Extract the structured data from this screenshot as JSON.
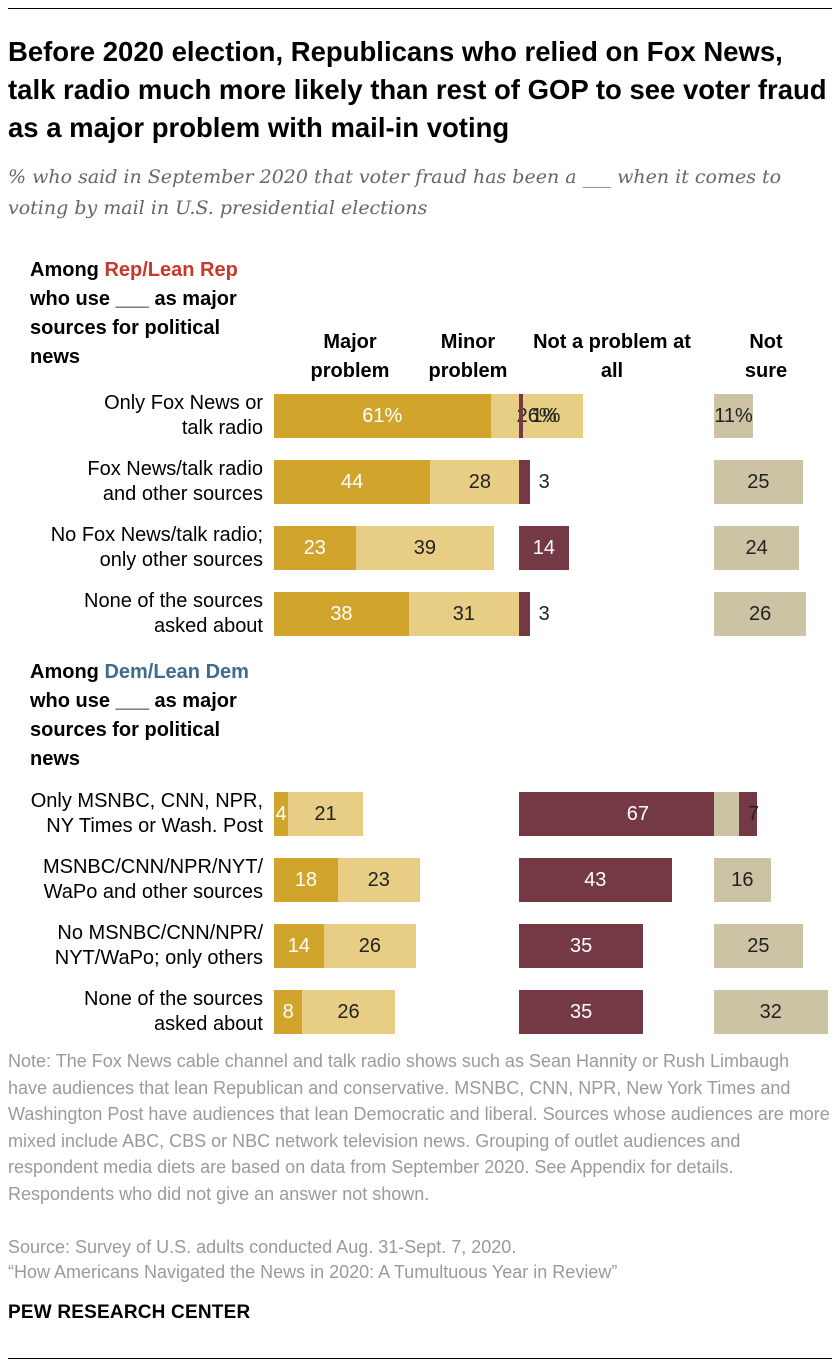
{
  "title": "Before 2020 election, Republicans who relied on Fox News, talk radio much more likely than rest of GOP to see voter fraud as a major problem with mail-in voting",
  "subtitle": "% who said in September 2020 that voter fraud has been a ___ when it comes to voting by mail in U.S. presidential elections",
  "columns": {
    "major": "Major problem",
    "minor": "Minor problem",
    "not_problem": "Not a problem at all",
    "not_sure": "Not sure"
  },
  "colors": {
    "major": "#d1a52c",
    "minor": "#e8cd85",
    "not_problem": "#743945",
    "not_sure": "#cbc3a3",
    "rep": "#c9382a",
    "dem": "#3d6d8c"
  },
  "groups": [
    {
      "prefix": "Among ",
      "highlight": "Rep/Lean Rep",
      "suffix": " who use ___ as major sources for political news"
    },
    {
      "prefix": "Among ",
      "highlight": "Dem/Lean Dem",
      "suffix": " who use ___ as major sources for political news"
    }
  ],
  "chart_data": {
    "type": "bar",
    "orientation": "horizontal",
    "unit": "%",
    "categories": [
      "Only Fox News or talk radio",
      "Fox News/talk radio and other sources",
      "No Fox News/talk radio; only other sources",
      "None of the sources asked about",
      "Only MSNBC, CNN, NPR, NY Times or Wash. Post",
      "MSNBC/CNN/NPR/NYT/ WaPo and other sources",
      "No MSNBC/CNN/NPR/ NYT/WaPo; only others",
      "None of the sources asked about"
    ],
    "category_lines": [
      [
        "Only Fox News or",
        "talk radio"
      ],
      [
        "Fox News/talk radio",
        "and other sources"
      ],
      [
        "No Fox News/talk radio;",
        "only other sources"
      ],
      [
        "None of the sources",
        "asked about"
      ],
      [
        "Only MSNBC, CNN, NPR,",
        "NY Times or Wash. Post"
      ],
      [
        "MSNBC/CNN/NPR/NYT/",
        "WaPo and other sources"
      ],
      [
        "No MSNBC/CNN/NPR/",
        "NYT/WaPo; only others"
      ],
      [
        "None of the sources",
        "asked about"
      ]
    ],
    "group_index": [
      0,
      0,
      0,
      0,
      1,
      1,
      1,
      1
    ],
    "series": [
      {
        "name": "Major problem",
        "values": [
          61,
          44,
          23,
          38,
          4,
          18,
          14,
          8
        ],
        "labels": [
          "61%",
          "44",
          "23",
          "38",
          "4",
          "18",
          "14",
          "8"
        ]
      },
      {
        "name": "Minor problem",
        "values": [
          26,
          28,
          39,
          31,
          21,
          23,
          26,
          26
        ],
        "labels": [
          "26%",
          "28",
          "39",
          "31",
          "21",
          "23",
          "26",
          "26"
        ]
      },
      {
        "name": "Not a problem at all",
        "values": [
          1,
          3,
          14,
          3,
          67,
          43,
          35,
          35
        ],
        "labels": [
          "1%",
          "3",
          "14",
          "3",
          "67",
          "43",
          "35",
          "35"
        ]
      },
      {
        "name": "Not sure",
        "values": [
          11,
          25,
          24,
          26,
          7,
          16,
          25,
          32
        ],
        "labels": [
          "11%",
          "25",
          "24",
          "26",
          "7",
          "16",
          "25",
          "32"
        ]
      }
    ],
    "stacked_series": [
      "Major problem",
      "Minor problem"
    ],
    "grid": false,
    "legend": "column headers above bars"
  },
  "note": "Note: The Fox News cable channel and talk radio shows such as Sean Hannity or Rush Limbaugh have audiences that lean Republican and conservative. MSNBC, CNN, NPR, New York Times and Washington Post have audiences that lean Democratic and liberal. Sources whose audiences are more mixed include ABC, CBS or NBC network television news. Grouping of outlet audiences and respondent media diets are based on data from September 2020. See Appendix for details. Respondents who did not give an answer not shown.",
  "source": "Source: Survey of U.S. adults conducted Aug. 31-Sept. 7, 2020.",
  "report": "“How Americans Navigated the News in 2020: A Tumultuous Year in Review”",
  "brand": "PEW RESEARCH CENTER"
}
